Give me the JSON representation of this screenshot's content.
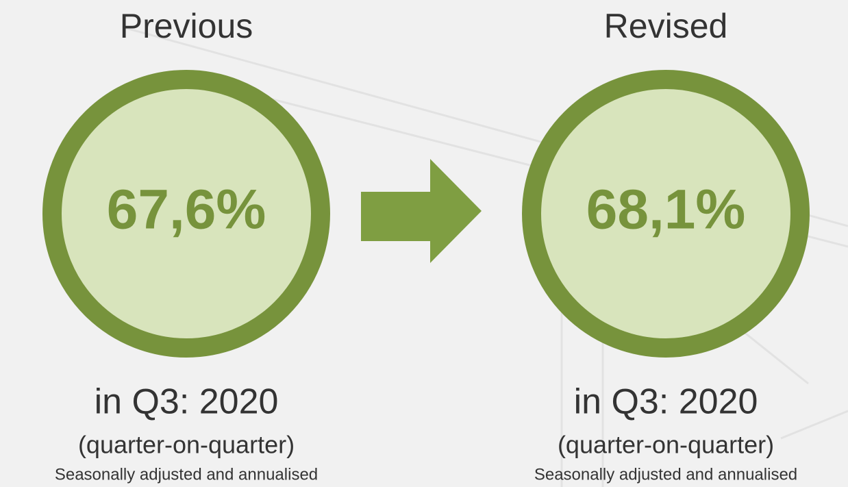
{
  "panels": [
    {
      "heading": "Previous",
      "value": "67,6%",
      "period": "in Q3: 2020",
      "basis": "(quarter-on-quarter)",
      "note": "Seasonally adjusted and annualised"
    },
    {
      "heading": "Revised",
      "value": "68,1%",
      "period": "in Q3: 2020",
      "basis": "(quarter-on-quarter)",
      "note": "Seasonally adjusted and annualised"
    }
  ]
}
